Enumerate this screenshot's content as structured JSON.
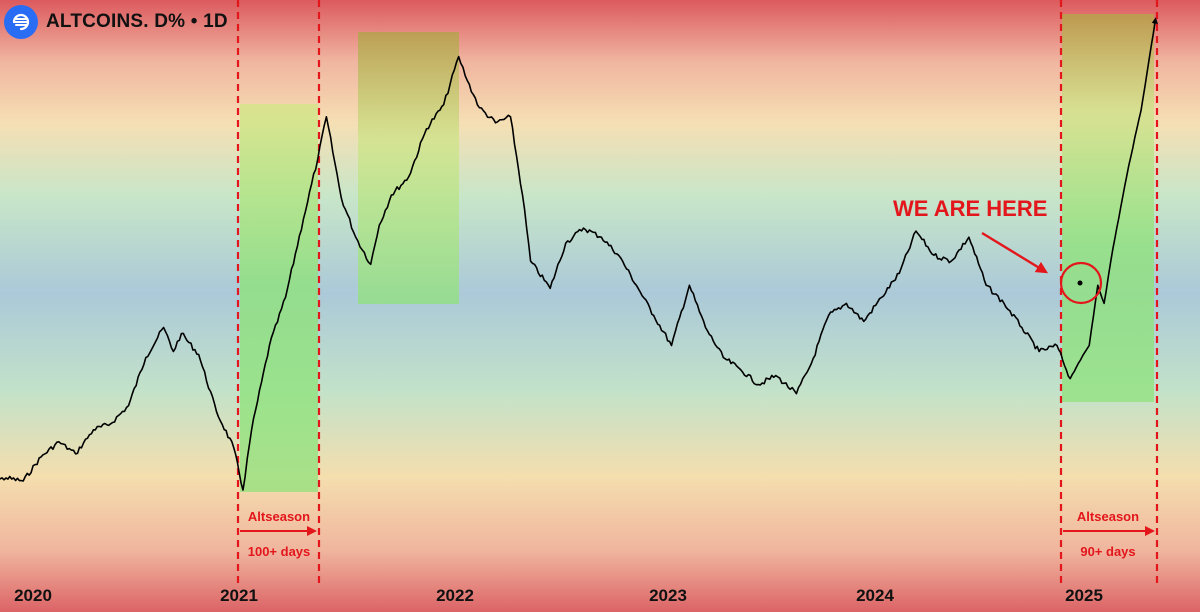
{
  "header": {
    "title": "ALTCOINS. D% • 1D",
    "logo_icon": "swirl-logo-icon"
  },
  "colors": {
    "band_top": "#dd5a5e",
    "band_mid": "#a9c8d7",
    "band_green": "#bfe3c8",
    "band_yellow": "#f3dea9",
    "highlight_green": "#7de07a",
    "highlight_olive": "#c6ad4e",
    "marker_red": "#e3161c",
    "line": "#000000"
  },
  "chart_data": {
    "type": "line",
    "x_ticks": [
      "2020",
      "2021",
      "2022",
      "2023",
      "2024",
      "2025"
    ],
    "series": [
      {
        "points": [
          [
            "2019-10-01",
            6.0
          ],
          [
            "2019-11-15",
            6.2
          ],
          [
            "2019-12-15",
            6.1
          ],
          [
            "2020-01-15",
            6.9
          ],
          [
            "2020-02-15",
            7.4
          ],
          [
            "2020-03-15",
            7.0
          ],
          [
            "2020-04-15",
            7.8
          ],
          [
            "2020-05-15",
            8.0
          ],
          [
            "2020-06-15",
            8.6
          ],
          [
            "2020-07-15",
            10.2
          ],
          [
            "2020-08-15",
            11.2
          ],
          [
            "2020-09-01",
            10.4
          ],
          [
            "2020-09-15",
            11.0
          ],
          [
            "2020-10-15",
            10.3
          ],
          [
            "2020-11-15",
            8.4
          ],
          [
            "2020-12-15",
            7.2
          ],
          [
            "2020-12-31",
            5.8
          ],
          [
            "2021-01-15",
            7.8
          ],
          [
            "2021-02-15",
            10.6
          ],
          [
            "2021-03-15",
            12.2
          ],
          [
            "2021-04-15",
            14.8
          ],
          [
            "2021-05-10",
            16.8
          ],
          [
            "2021-05-25",
            18.2
          ],
          [
            "2021-06-20",
            15.5
          ],
          [
            "2021-07-15",
            14.2
          ],
          [
            "2021-08-10",
            13.3
          ],
          [
            "2021-08-25",
            14.6
          ],
          [
            "2021-09-15",
            15.6
          ],
          [
            "2021-10-15",
            16.2
          ],
          [
            "2021-11-15",
            17.8
          ],
          [
            "2021-12-15",
            18.6
          ],
          [
            "2022-01-10",
            20.2
          ],
          [
            "2022-01-25",
            19.4
          ],
          [
            "2022-02-15",
            18.5
          ],
          [
            "2022-03-15",
            18.0
          ],
          [
            "2022-04-10",
            18.2
          ],
          [
            "2022-05-01",
            15.6
          ],
          [
            "2022-05-15",
            13.4
          ],
          [
            "2022-06-18",
            12.5
          ],
          [
            "2022-07-15",
            14.0
          ],
          [
            "2022-08-15",
            14.5
          ],
          [
            "2022-09-15",
            14.2
          ],
          [
            "2022-10-15",
            13.6
          ],
          [
            "2022-11-15",
            12.6
          ],
          [
            "2022-12-15",
            11.6
          ],
          [
            "2023-01-15",
            10.6
          ],
          [
            "2023-02-15",
            12.6
          ],
          [
            "2023-03-15",
            11.2
          ],
          [
            "2023-04-15",
            10.2
          ],
          [
            "2023-05-15",
            9.8
          ],
          [
            "2023-06-15",
            9.3
          ],
          [
            "2023-07-15",
            9.6
          ],
          [
            "2023-08-20",
            9.0
          ],
          [
            "2023-09-15",
            10.0
          ],
          [
            "2023-10-15",
            11.6
          ],
          [
            "2023-11-15",
            12.0
          ],
          [
            "2023-12-15",
            11.4
          ],
          [
            "2024-01-15",
            12.2
          ],
          [
            "2024-02-15",
            13.0
          ],
          [
            "2024-03-15",
            14.4
          ],
          [
            "2024-04-15",
            13.6
          ],
          [
            "2024-05-15",
            13.4
          ],
          [
            "2024-06-15",
            14.2
          ],
          [
            "2024-07-15",
            12.6
          ],
          [
            "2024-08-15",
            12.0
          ],
          [
            "2024-09-15",
            11.2
          ],
          [
            "2024-10-15",
            10.4
          ],
          [
            "2024-11-15",
            10.6
          ],
          [
            "2024-12-08",
            9.5
          ],
          [
            "2024-12-22",
            10.0
          ],
          [
            "2025-01-10",
            10.6
          ],
          [
            "2025-01-25",
            12.6
          ],
          [
            "2025-02-05",
            12.0
          ],
          [
            "2025-02-20",
            13.8
          ],
          [
            "2025-03-20",
            16.6
          ],
          [
            "2025-04-10",
            18.4
          ],
          [
            "2025-05-05",
            21.4
          ]
        ]
      }
    ],
    "annotations": [
      {
        "text": "WE ARE HERE"
      },
      {
        "text": "Altseason"
      },
      {
        "text": "100+ days"
      },
      {
        "text": "Altseason"
      },
      {
        "text": "90+ days"
      }
    ]
  }
}
